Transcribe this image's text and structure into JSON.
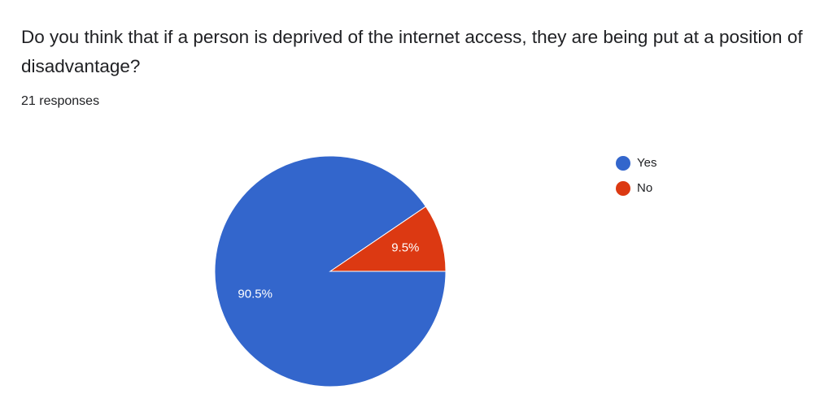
{
  "chart_data": {
    "type": "pie",
    "title": "Do you think that if a person is deprived of the internet access, they are being put at a position of disadvantage?",
    "subtitle": "21 responses",
    "categories": [
      "Yes",
      "No"
    ],
    "values": [
      90.5,
      9.5
    ],
    "value_labels": [
      "90.5%",
      "9.5%"
    ],
    "colors": [
      "#3366cc",
      "#dc3912"
    ],
    "legend": "right"
  }
}
